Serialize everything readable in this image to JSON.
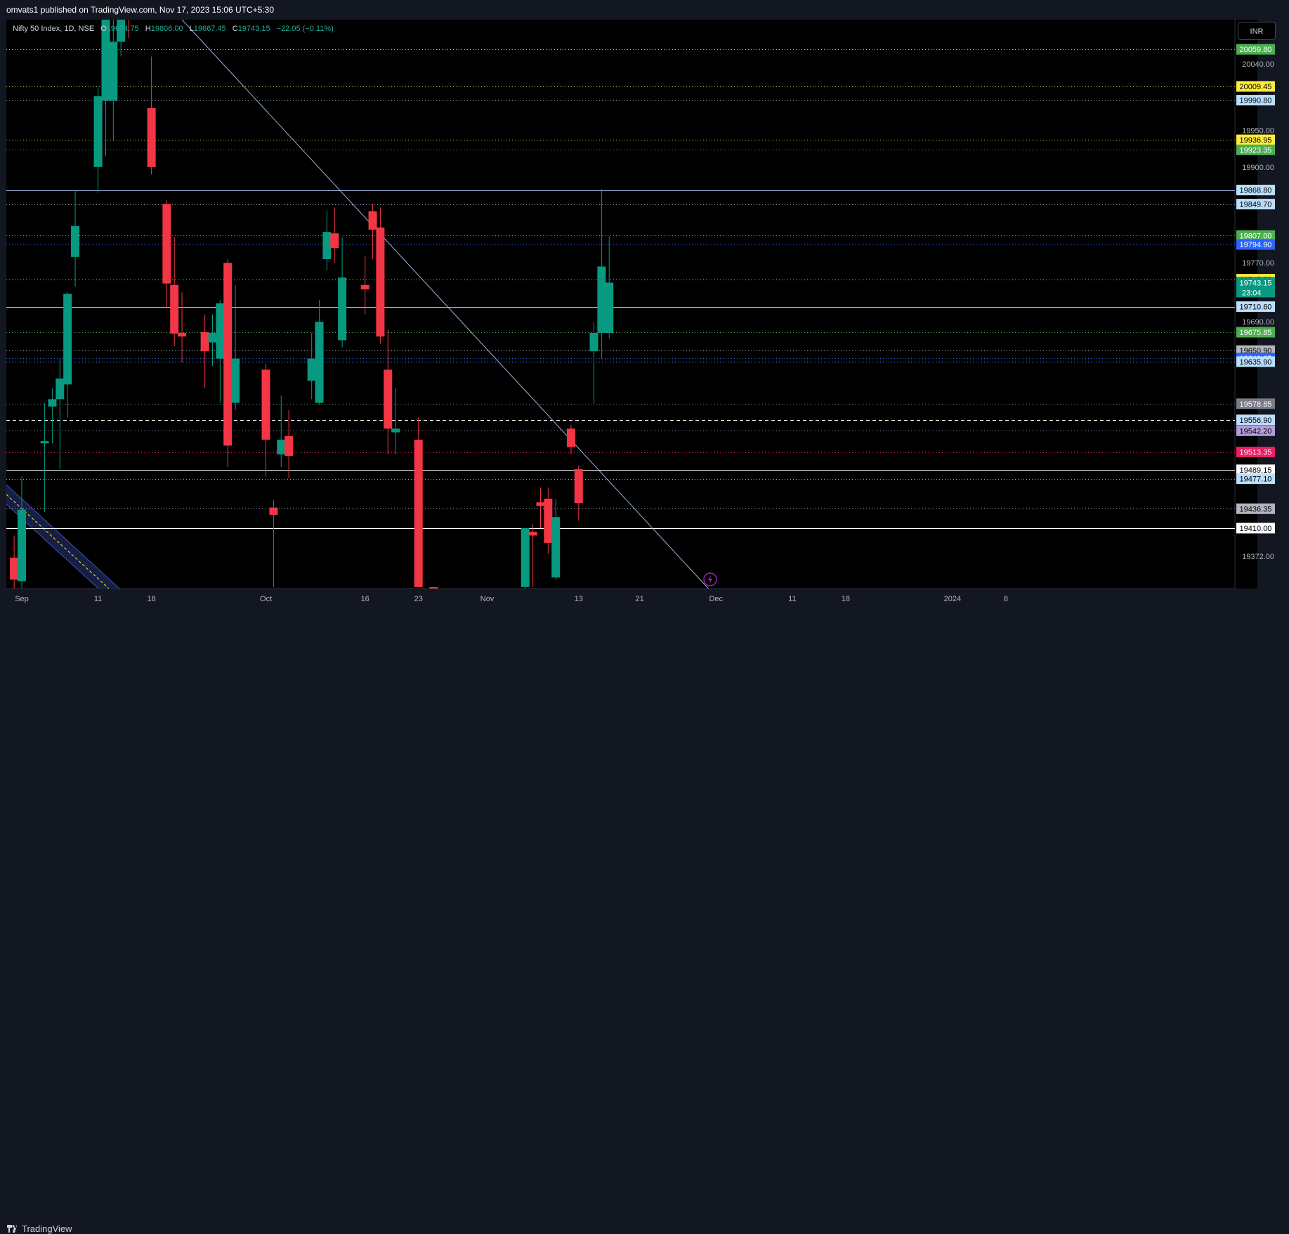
{
  "header": {
    "published": "omvats1 published on TradingView.com, Nov 17, 2023 15:06 UTC+5:30"
  },
  "legend": {
    "symbol": "Nifty 50 Index, 1D, NSE",
    "o_label": "O",
    "o_value": "19674.75",
    "h_label": "H",
    "h_value": "19806.00",
    "l_label": "L",
    "l_value": "19667.45",
    "c_label": "C",
    "c_value": "19743.15",
    "change": "−22.05 (−0.11%)"
  },
  "currency": "INR",
  "footer": {
    "brand": "TradingView"
  },
  "colors": {
    "up": "#089981",
    "down": "#f23645",
    "grid_bg": "#000000",
    "trendline": "#9db2d9",
    "levels_yellow": "#c8c84a"
  },
  "chart_data": {
    "type": "candlestick",
    "title": "Nifty 50 Index, 1D, NSE",
    "ylim": [
      19328,
      20100
    ],
    "x_ticks": [
      {
        "label": "Sep",
        "date": "2023-09-01"
      },
      {
        "label": "11",
        "date": "2023-09-11"
      },
      {
        "label": "18",
        "date": "2023-09-18"
      },
      {
        "label": "Oct",
        "date": "2023-10-03"
      },
      {
        "label": "16",
        "date": "2023-10-16"
      },
      {
        "label": "23",
        "date": "2023-10-23"
      },
      {
        "label": "Nov",
        "date": "2023-11-01"
      },
      {
        "label": "13",
        "date": "2023-11-13"
      },
      {
        "label": "21",
        "date": "2023-11-21"
      },
      {
        "label": "Dec",
        "date": "2023-12-01"
      },
      {
        "label": "11",
        "date": "2023-12-11"
      },
      {
        "label": "18",
        "date": "2023-12-18"
      },
      {
        "label": "2024",
        "date": "2024-01-01"
      },
      {
        "label": "8",
        "date": "2024-01-08"
      }
    ],
    "y_ticks": [
      20040.0,
      19950.0,
      19900.0,
      19770.0,
      19690.0,
      19372.0
    ],
    "candles": [
      {
        "date": "2023-08-31",
        "o": 19370,
        "h": 19400,
        "l": 19328,
        "c": 19340
      },
      {
        "date": "2023-09-01",
        "o": 19338,
        "h": 19480,
        "l": 19328,
        "c": 19435
      },
      {
        "date": "2023-09-04",
        "o": 19525,
        "h": 19580,
        "l": 19432,
        "c": 19528
      },
      {
        "date": "2023-09-05",
        "o": 19575,
        "h": 19600,
        "l": 19525,
        "c": 19585
      },
      {
        "date": "2023-09-06",
        "o": 19585,
        "h": 19640,
        "l": 19490,
        "c": 19613
      },
      {
        "date": "2023-09-07",
        "o": 19605,
        "h": 19730,
        "l": 19560,
        "c": 19728
      },
      {
        "date": "2023-09-08",
        "o": 19778,
        "h": 19868,
        "l": 19738,
        "c": 19820
      },
      {
        "date": "2023-09-11",
        "o": 19900,
        "h": 20008,
        "l": 19865,
        "c": 19996
      },
      {
        "date": "2023-09-12",
        "o": 19990,
        "h": 20110,
        "l": 19915,
        "c": 20110
      },
      {
        "date": "2023-09-13",
        "o": 19990,
        "h": 20120,
        "l": 19935,
        "c": 20070
      },
      {
        "date": "2023-09-14",
        "o": 20070,
        "h": 20130,
        "l": 20050,
        "c": 20105
      },
      {
        "date": "2023-09-15",
        "o": 20110,
        "h": 20140,
        "l": 20075,
        "c": 20102
      },
      {
        "date": "2023-09-18",
        "o": 19980,
        "h": 20050,
        "l": 19890,
        "c": 19900
      },
      {
        "date": "2023-09-20",
        "o": 19850,
        "h": 19855,
        "l": 19710,
        "c": 19742
      },
      {
        "date": "2023-09-21",
        "o": 19740,
        "h": 19805,
        "l": 19657,
        "c": 19674
      },
      {
        "date": "2023-09-22",
        "o": 19675,
        "h": 19730,
        "l": 19635,
        "c": 19670
      },
      {
        "date": "2023-09-25",
        "o": 19676,
        "h": 19700,
        "l": 19600,
        "c": 19650
      },
      {
        "date": "2023-09-26",
        "o": 19662,
        "h": 19700,
        "l": 19630,
        "c": 19675
      },
      {
        "date": "2023-09-27",
        "o": 19640,
        "h": 19720,
        "l": 19580,
        "c": 19715
      },
      {
        "date": "2023-09-28",
        "o": 19770,
        "h": 19775,
        "l": 19493,
        "c": 19522
      },
      {
        "date": "2023-09-29",
        "o": 19580,
        "h": 19740,
        "l": 19570,
        "c": 19640
      },
      {
        "date": "2023-10-03",
        "o": 19625,
        "h": 19633,
        "l": 19480,
        "c": 19530
      },
      {
        "date": "2023-10-04",
        "o": 19438,
        "h": 19448,
        "l": 19330,
        "c": 19428
      },
      {
        "date": "2023-10-05",
        "o": 19510,
        "h": 19590,
        "l": 19493,
        "c": 19530
      },
      {
        "date": "2023-10-06",
        "o": 19535,
        "h": 19570,
        "l": 19478,
        "c": 19508
      },
      {
        "date": "2023-10-09",
        "o": 19610,
        "h": 19675,
        "l": 19585,
        "c": 19640
      },
      {
        "date": "2023-10-10",
        "o": 19580,
        "h": 19720,
        "l": 19578,
        "c": 19690
      },
      {
        "date": "2023-10-11",
        "o": 19775,
        "h": 19840,
        "l": 19760,
        "c": 19812
      },
      {
        "date": "2023-10-12",
        "o": 19810,
        "h": 19845,
        "l": 19770,
        "c": 19790
      },
      {
        "date": "2023-10-13",
        "o": 19665,
        "h": 19805,
        "l": 19655,
        "c": 19750
      },
      {
        "date": "2023-10-16",
        "o": 19740,
        "h": 19780,
        "l": 19700,
        "c": 19734
      },
      {
        "date": "2023-10-17",
        "o": 19840,
        "h": 19850,
        "l": 19775,
        "c": 19815
      },
      {
        "date": "2023-10-18",
        "o": 19818,
        "h": 19845,
        "l": 19660,
        "c": 19670
      },
      {
        "date": "2023-10-19",
        "o": 19625,
        "h": 19680,
        "l": 19510,
        "c": 19545
      },
      {
        "date": "2023-10-20",
        "o": 19540,
        "h": 19600,
        "l": 19510,
        "c": 19545
      },
      {
        "date": "2023-10-23",
        "o": 19530,
        "h": 19560,
        "l": 19330,
        "c": 19330
      },
      {
        "date": "2023-10-25",
        "o": 19330,
        "h": 19330,
        "l": 19328,
        "c": 19328
      },
      {
        "date": "2023-11-06",
        "o": 19330,
        "h": 19410,
        "l": 19328,
        "c": 19410
      },
      {
        "date": "2023-11-07",
        "o": 19405,
        "h": 19415,
        "l": 19330,
        "c": 19400
      },
      {
        "date": "2023-11-08",
        "o": 19445,
        "h": 19465,
        "l": 19410,
        "c": 19440
      },
      {
        "date": "2023-11-09",
        "o": 19450,
        "h": 19465,
        "l": 19375,
        "c": 19390
      },
      {
        "date": "2023-11-10",
        "o": 19343,
        "h": 19450,
        "l": 19340,
        "c": 19425
      },
      {
        "date": "2023-11-12",
        "o": 19545,
        "h": 19550,
        "l": 19510,
        "c": 19520
      },
      {
        "date": "2023-11-13",
        "o": 19490,
        "h": 19495,
        "l": 19420,
        "c": 19444
      },
      {
        "date": "2023-11-15",
        "o": 19650,
        "h": 19690,
        "l": 19578,
        "c": 19675
      },
      {
        "date": "2023-11-16",
        "o": 19675,
        "h": 19870,
        "l": 19640,
        "c": 19765
      },
      {
        "date": "2023-11-17",
        "o": 19674.75,
        "h": 19806.0,
        "l": 19667.45,
        "c": 19743.15
      }
    ],
    "trendlines": [
      {
        "x1": "2023-09-22",
        "y1": 20100,
        "x2": "2023-11-30",
        "y2": 19328
      }
    ],
    "levels": [
      {
        "price": 20059.8,
        "label": "20059.80",
        "style": "dotted",
        "line": "#c8c84a",
        "bg": "#4caf50",
        "fg": "#ffffff"
      },
      {
        "price": 20009.45,
        "label": "20009.45",
        "style": "dotted",
        "line": "#c8c84a",
        "bg": "#ffeb3b",
        "fg": "#000000"
      },
      {
        "price": 19990.8,
        "label": "19990.80",
        "style": "dotted",
        "line": "#9db2d9",
        "bg": "#bbdefb",
        "fg": "#000000"
      },
      {
        "price": 19936.95,
        "label": "19936.95",
        "style": "dotted",
        "line": "#c8c84a",
        "bg": "#ffeb3b",
        "fg": "#000000"
      },
      {
        "price": 19923.35,
        "label": "19923.35",
        "style": "dotted",
        "line": "#4caf50",
        "bg": "#4caf50",
        "fg": "#ffffff"
      },
      {
        "price": 19868.8,
        "label": "19868.80",
        "style": "solid",
        "line": "#9db2d9",
        "bg": "#bbdefb",
        "fg": "#000000"
      },
      {
        "price": 19849.7,
        "label": "19849.70",
        "style": "dotted",
        "line": "#9db2d9",
        "bg": "#bbdefb",
        "fg": "#000000"
      },
      {
        "price": 19807.0,
        "label": "19807.00",
        "style": "dotted",
        "line": "#4caf50",
        "bg": "#4caf50",
        "fg": "#ffffff"
      },
      {
        "price": 19794.9,
        "label": "19794.90",
        "style": "dotted",
        "line": "#2962ff",
        "bg": "#2962ff",
        "fg": "#ffffff"
      },
      {
        "price": 19747.75,
        "label": "19747.75",
        "style": "dotted",
        "line": "#c8c84a",
        "bg": "#ffeb3b",
        "fg": "#000000"
      },
      {
        "price": 19710.6,
        "label": "19710.60",
        "style": "solid",
        "line": "#bbdefb",
        "bg": "#bbdefb",
        "fg": "#000000"
      },
      {
        "price": 19675.85,
        "label": "19675.85",
        "style": "dotted",
        "line": "#4caf50",
        "bg": "#4caf50",
        "fg": "#ffffff"
      },
      {
        "price": 19650.9,
        "label": "19650.90",
        "style": "dotted",
        "line": "#b2b5be",
        "bg": "#b2b5be",
        "fg": "#000000"
      },
      {
        "price": 19640.65,
        "label": "19640.65",
        "style": "dotted",
        "line": "#2962ff",
        "bg": "#2962ff",
        "fg": "#ffffff"
      },
      {
        "price": 19635.9,
        "label": "19635.90",
        "style": "dotted",
        "line": "#9db2d9",
        "bg": "#bbdefb",
        "fg": "#000000"
      },
      {
        "price": 19578.85,
        "label": "19578.85",
        "style": "dotted",
        "line": "#787b86",
        "bg": "#787b86",
        "fg": "#ffffff"
      },
      {
        "price": 19556.9,
        "label": "19556.90",
        "style": "dashed",
        "line": "#ffffff",
        "bg": "#bbdefb",
        "fg": "#000000"
      },
      {
        "price": 19542.2,
        "label": "19542.20",
        "style": "dotted",
        "line": "#9c7fd1",
        "bg": "#b39ddb",
        "fg": "#000000"
      },
      {
        "price": 19513.35,
        "label": "19513.35",
        "style": "dotted",
        "line": "#e91e63",
        "bg": "#e91e63",
        "fg": "#ffffff"
      },
      {
        "price": 19489.15,
        "label": "19489.15",
        "style": "solid",
        "line": "#ffffff",
        "bg": "#ffffff",
        "fg": "#000000"
      },
      {
        "price": 19477.1,
        "label": "19477.10",
        "style": "dotted",
        "line": "#9db2d9",
        "bg": "#bbdefb",
        "fg": "#000000"
      },
      {
        "price": 19436.35,
        "label": "19436.35",
        "style": "dotted",
        "line": "#b2b5be",
        "bg": "#b2b5be",
        "fg": "#000000"
      },
      {
        "price": 19410.0,
        "label": "19410.00",
        "style": "solid",
        "line": "#ffffff",
        "bg": "#ffffff",
        "fg": "#000000"
      }
    ],
    "last_price": {
      "price": 19743.15,
      "label": "19743.15",
      "countdown": "23:04",
      "bg": "#089981",
      "fg": "#ffffff"
    }
  }
}
